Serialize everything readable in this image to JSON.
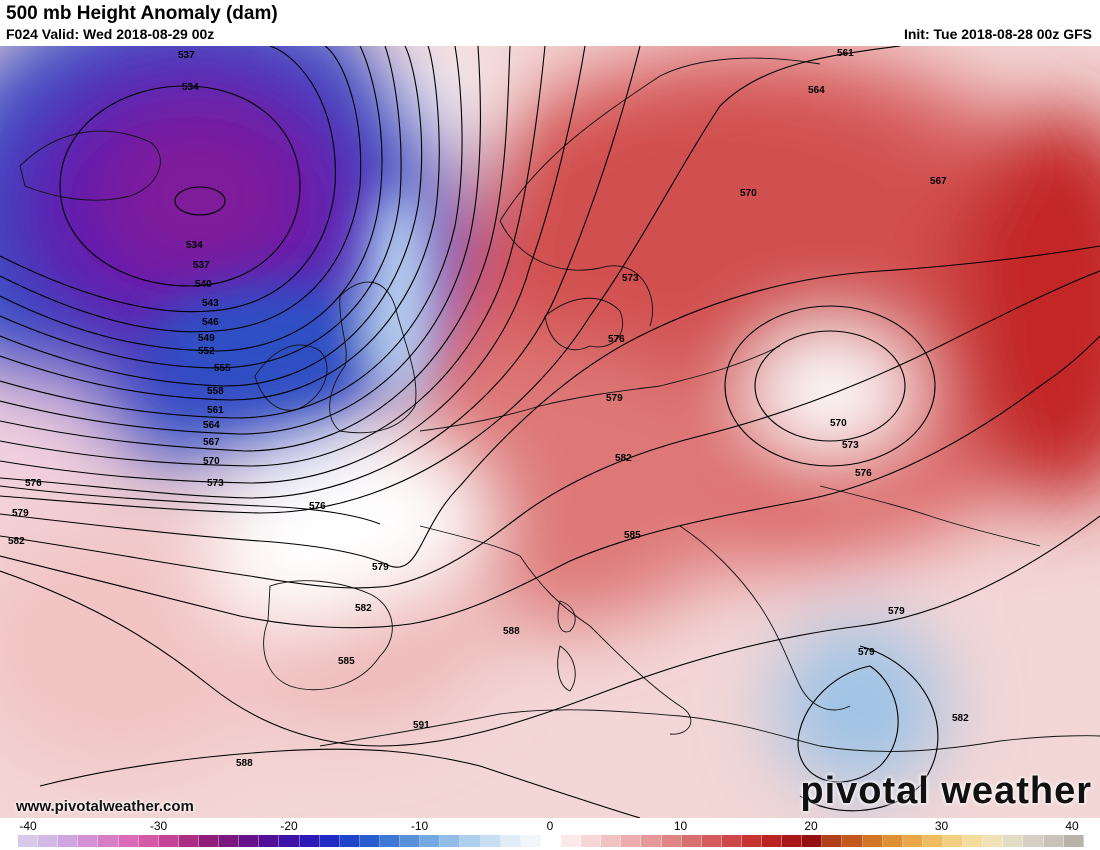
{
  "header": {
    "title": "500 mb Height Anomaly (dam)",
    "valid": "F024 Valid: Wed 2018-08-29 00z",
    "init": "Init: Tue 2018-08-28 00z GFS"
  },
  "footer": {
    "website": "www.pivotalweather.com",
    "brand": "pivotal weather"
  },
  "colorbar": {
    "min": -40,
    "max": 40,
    "ticks": [
      "-40",
      "-30",
      "-20",
      "-10",
      "0",
      "10",
      "20",
      "30",
      "40"
    ],
    "colors": [
      "#d8c8ea",
      "#d2b8e4",
      "#cfa6df",
      "#d392d4",
      "#d67fc6",
      "#d96bb8",
      "#d45aa6",
      "#c44596",
      "#ac2f86",
      "#8f1f79",
      "#7a1880",
      "#66128c",
      "#521098",
      "#3e13a8",
      "#2b1ab8",
      "#1f2bc4",
      "#1f45c9",
      "#2a5ecf",
      "#3e77d4",
      "#5890d9",
      "#75a8e0",
      "#92bde7",
      "#aecfee",
      "#c8def3",
      "#e0ecf8",
      "#f2f6fb",
      "#ffffff",
      "#fbeaea",
      "#f6d6d6",
      "#f0c2c2",
      "#ebadad",
      "#e59999",
      "#df8585",
      "#d97070",
      "#d35c5c",
      "#cd4848",
      "#c73434",
      "#bb2222",
      "#a81818",
      "#951010",
      "#b0401a",
      "#c25a20",
      "#d27528",
      "#df9035",
      "#e8a848",
      "#eebd62",
      "#f2cf80",
      "#f4dc9c",
      "#f0e2b6",
      "#e2dcc4",
      "#d6d0c4",
      "#c8c2b8",
      "#b8b2aa"
    ]
  },
  "contour_labels": [
    "537",
    "534",
    "534",
    "537",
    "540",
    "543",
    "546",
    "549",
    "552",
    "555",
    "558",
    "561",
    "564",
    "567",
    "570",
    "573",
    "576",
    "576",
    "579",
    "582",
    "561",
    "564",
    "567",
    "570",
    "573",
    "576",
    "579",
    "582",
    "585",
    "588",
    "570",
    "573",
    "576",
    "579",
    "579",
    "582",
    "585",
    "588",
    "591",
    "579",
    "582",
    "588",
    "576",
    "579",
    "582"
  ]
}
